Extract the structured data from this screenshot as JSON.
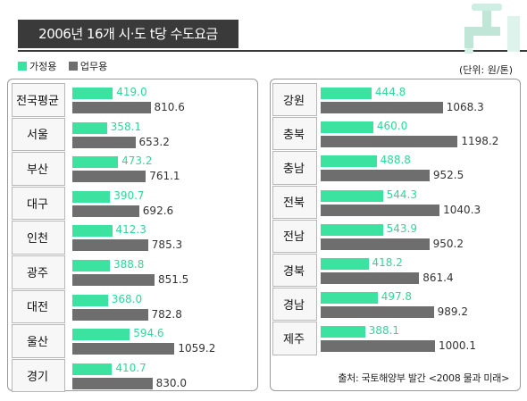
{
  "title": "2006년 16개  시·도 t당 수도요금",
  "unit": "(단위: 원/톤)",
  "source": "출처: 국토해양부 발간 <2008 물과 미래>",
  "legend": [
    {
      "label": "가정용",
      "color": "#3ce29f"
    },
    {
      "label": "업무용",
      "color": "#6e6e6e"
    }
  ],
  "chart_data": [
    {
      "type": "bar",
      "orientation": "horizontal",
      "categories": [
        "전국평균",
        "서울",
        "부산",
        "대구",
        "인천",
        "광주",
        "대전",
        "울산",
        "경기"
      ],
      "series": [
        {
          "name": "가정용",
          "values": [
            419.0,
            358.1,
            473.2,
            390.7,
            412.3,
            388.8,
            368.0,
            594.6,
            410.7
          ]
        },
        {
          "name": "업무용",
          "values": [
            810.6,
            653.2,
            761.1,
            692.6,
            785.3,
            851.5,
            782.8,
            1059.2,
            830.0
          ]
        }
      ],
      "labels": {
        "가정용": [
          "419.0",
          "358.1",
          "473.2",
          "390.7",
          "412.3",
          "388.8",
          "368.0",
          "594.6",
          "410.7"
        ],
        "업무용": [
          "810.6",
          "653.2",
          "761.1",
          "692.6",
          "785.3",
          "851.5",
          "782.8",
          "1059.2",
          "830.0"
        ]
      }
    },
    {
      "type": "bar",
      "orientation": "horizontal",
      "categories": [
        "강원",
        "충북",
        "충남",
        "전북",
        "전남",
        "경북",
        "경남",
        "제주"
      ],
      "series": [
        {
          "name": "가정용",
          "values": [
            444.8,
            460.0,
            488.8,
            544.3,
            543.9,
            418.2,
            497.8,
            388.1
          ]
        },
        {
          "name": "업무용",
          "values": [
            1068.3,
            1198.2,
            952.5,
            1040.3,
            950.2,
            861.4,
            989.2,
            1000.1
          ]
        }
      ],
      "labels": {
        "가정용": [
          "444.8",
          "460.0",
          "488.8",
          "544.3",
          "543.9",
          "418.2",
          "497.8",
          "388.1"
        ],
        "업무용": [
          "1068.3",
          "1198.2",
          "952.5",
          "1040.3",
          "950.2",
          "861.4",
          "989.2",
          "1000.1"
        ]
      }
    }
  ]
}
